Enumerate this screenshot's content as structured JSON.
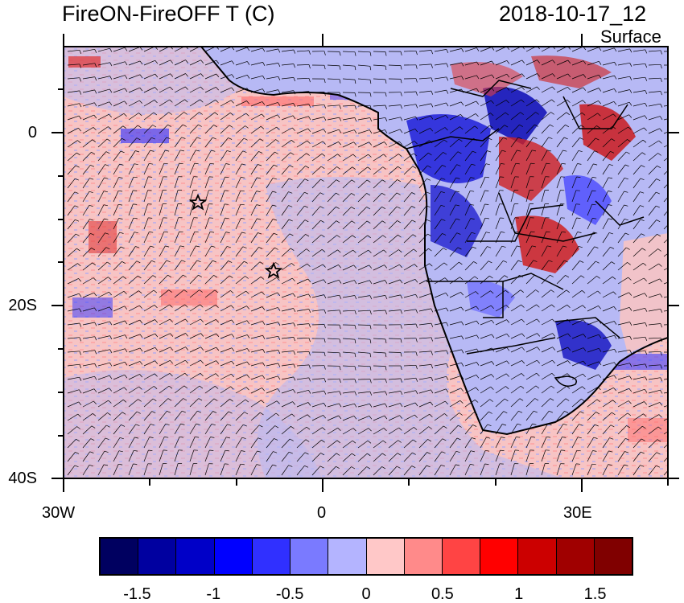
{
  "header": {
    "title": "FireON-FireOFF T (C)",
    "time": "2018-10-17_12",
    "level": "Surface"
  },
  "map": {
    "lat_labels": [
      "0",
      "20S",
      "40S"
    ],
    "lon_labels": [
      "30W",
      "0",
      "30E"
    ],
    "ocean_color": "#f7c4c4",
    "land_color": "#b7b9f5",
    "markers": [
      "star",
      "star"
    ]
  },
  "colorbar": {
    "colors": [
      "#000060",
      "#0000a0",
      "#0000c8",
      "#0000ff",
      "#3030ff",
      "#7a7aff",
      "#b4b4ff",
      "#ffc8c8",
      "#ff8a8a",
      "#ff4444",
      "#ff0000",
      "#cc0000",
      "#a00000",
      "#800000"
    ],
    "labels": [
      "-1.5",
      "-1",
      "-0.5",
      "0",
      "0.5",
      "1",
      "1.5"
    ]
  }
}
